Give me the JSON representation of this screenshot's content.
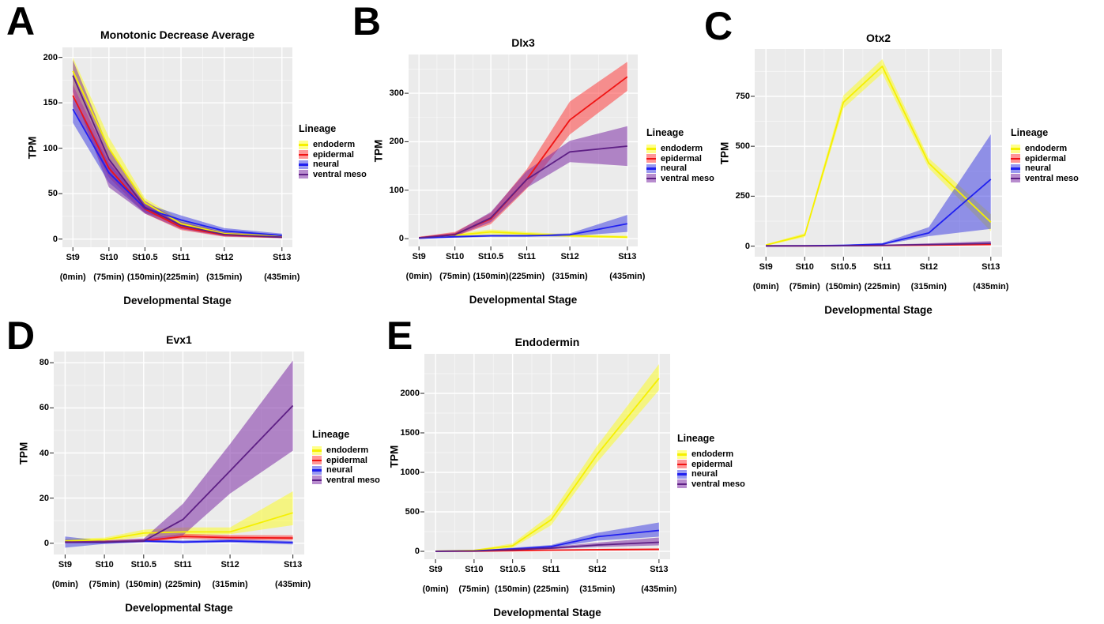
{
  "figure": {
    "background": "#ffffff",
    "panel_background": "#EBEBEB",
    "grid_major_color": "#FFFFFF",
    "grid_minor_color": "#FFFFFF",
    "x_axis_title": "Developmental Stage",
    "y_axis_title": "TPM",
    "legend_title": "Lineage",
    "stages": [
      "St9",
      "St10",
      "St10.5",
      "St11",
      "St12",
      "St13"
    ],
    "stage_minute_labels": [
      "(0min)",
      "(75min)",
      "(150min)",
      "(225min)",
      "(315min)",
      "(435min)"
    ],
    "stage_minutes": [
      0,
      75,
      150,
      225,
      315,
      435
    ]
  },
  "lineages": [
    {
      "name": "endoderm",
      "line_color": "#F5F000",
      "fill_color": "rgba(255,255,0,0.45)"
    },
    {
      "name": "epidermal",
      "line_color": "#F01414",
      "fill_color": "rgba(255,48,48,0.5)"
    },
    {
      "name": "neural",
      "line_color": "#2020F0",
      "fill_color": "rgba(52,52,226,0.5)"
    },
    {
      "name": "ventral meso",
      "line_color": "#5E1F85",
      "fill_color": "rgba(125,45,165,0.55)"
    }
  ],
  "chart_data": [
    {
      "type": "line",
      "letter": "A",
      "title": "Monotonic Decrease Average",
      "xlabel": "Developmental Stage",
      "ylabel": "TPM",
      "x_minutes": [
        0,
        75,
        150,
        225,
        315,
        435
      ],
      "ylim": [
        -9,
        211
      ],
      "yticks": [
        0,
        50,
        100,
        150,
        200
      ],
      "series": [
        {
          "name": "endoderm",
          "mean": [
            185,
            100,
            40,
            17,
            6,
            3
          ],
          "lower": [
            170,
            90,
            36,
            14,
            4,
            1.5
          ],
          "upper": [
            200,
            112,
            45,
            21,
            8,
            4.5
          ]
        },
        {
          "name": "epidermal",
          "mean": [
            158,
            78,
            33,
            13,
            4.5,
            2
          ],
          "lower": [
            146,
            68,
            28,
            10,
            2.5,
            1
          ],
          "upper": [
            170,
            88,
            38,
            17,
            6.5,
            3.5
          ]
        },
        {
          "name": "neural",
          "mean": [
            143,
            73,
            34,
            21,
            9,
            4
          ],
          "lower": [
            128,
            62,
            29,
            17,
            6,
            2
          ],
          "upper": [
            158,
            84,
            39,
            26,
            12,
            6
          ]
        },
        {
          "name": "ventral meso",
          "mean": [
            180,
            88,
            35,
            15,
            5,
            2
          ],
          "lower": [
            162,
            57,
            28,
            11,
            3,
            1
          ],
          "upper": [
            197,
            100,
            42,
            19,
            7.5,
            3.5
          ]
        }
      ]
    },
    {
      "type": "line",
      "letter": "B",
      "title": "Dlx3",
      "xlabel": "Developmental Stage",
      "ylabel": "TPM",
      "x_minutes": [
        0,
        75,
        150,
        225,
        315,
        435
      ],
      "ylim": [
        -16,
        380
      ],
      "yticks": [
        0,
        100,
        200,
        300
      ],
      "series": [
        {
          "name": "endoderm",
          "mean": [
            2,
            7,
            14,
            10,
            6,
            3
          ],
          "lower": [
            1,
            4,
            9,
            6,
            3,
            1
          ],
          "upper": [
            3,
            10,
            19,
            14,
            9,
            6
          ]
        },
        {
          "name": "epidermal",
          "mean": [
            2,
            9,
            41,
            122,
            245,
            334
          ],
          "lower": [
            1,
            5,
            30,
            103,
            215,
            305
          ],
          "upper": [
            4,
            14,
            53,
            143,
            283,
            365
          ]
        },
        {
          "name": "neural",
          "mean": [
            1,
            4,
            6,
            6,
            8,
            31
          ],
          "lower": [
            0,
            2,
            4,
            4,
            5,
            14
          ],
          "upper": [
            2,
            6,
            8,
            8,
            11,
            49
          ]
        },
        {
          "name": "ventral meso",
          "mean": [
            2,
            8,
            43,
            122,
            179,
            191
          ],
          "lower": [
            1,
            5,
            34,
            105,
            158,
            150
          ],
          "upper": [
            3,
            12,
            55,
            140,
            202,
            232
          ]
        }
      ]
    },
    {
      "type": "line",
      "letter": "C",
      "title": "Otx2",
      "xlabel": "Developmental Stage",
      "ylabel": "TPM",
      "x_minutes": [
        0,
        75,
        150,
        225,
        315,
        435
      ],
      "ylim": [
        -53,
        987
      ],
      "yticks": [
        0,
        250,
        500,
        750
      ],
      "series": [
        {
          "name": "endoderm",
          "mean": [
            5,
            55,
            720,
            900,
            415,
            120
          ],
          "lower": [
            2,
            45,
            690,
            865,
            390,
            75
          ],
          "upper": [
            10,
            65,
            755,
            936,
            440,
            160
          ]
        },
        {
          "name": "epidermal",
          "mean": [
            1,
            1,
            2,
            3,
            5,
            8
          ],
          "lower": [
            0,
            0,
            1,
            2,
            3,
            5
          ],
          "upper": [
            2,
            2,
            4,
            5,
            8,
            12
          ]
        },
        {
          "name": "neural",
          "mean": [
            1,
            2,
            4,
            10,
            66,
            335
          ],
          "lower": [
            0,
            1,
            2,
            6,
            50,
            86
          ],
          "upper": [
            2,
            4,
            7,
            15,
            95,
            560
          ]
        },
        {
          "name": "ventral meso",
          "mean": [
            1,
            1,
            2,
            4,
            8,
            14
          ],
          "lower": [
            0,
            0,
            1,
            2,
            4,
            6
          ],
          "upper": [
            2,
            3,
            4,
            7,
            14,
            25
          ]
        }
      ]
    },
    {
      "type": "line",
      "letter": "D",
      "title": "Evx1",
      "xlabel": "Developmental Stage",
      "ylabel": "TPM",
      "x_minutes": [
        0,
        75,
        150,
        225,
        315,
        435
      ],
      "ylim": [
        -5,
        85
      ],
      "yticks": [
        0,
        20,
        40,
        60,
        80
      ],
      "series": [
        {
          "name": "endoderm",
          "mean": [
            1,
            1.5,
            4.5,
            5,
            5,
            13.5
          ],
          "lower": [
            0.2,
            0.5,
            3,
            3.5,
            4,
            8
          ],
          "upper": [
            2,
            2.5,
            6,
            7,
            7,
            23
          ]
        },
        {
          "name": "epidermal",
          "mean": [
            0.5,
            0.5,
            1,
            3,
            2.5,
            2.3
          ],
          "lower": [
            0,
            0,
            0.5,
            2,
            1.5,
            1.4
          ],
          "upper": [
            1,
            1.2,
            2,
            4.2,
            3.6,
            3.5
          ]
        },
        {
          "name": "neural",
          "mean": [
            0.5,
            0.3,
            1,
            0.5,
            1,
            0.3
          ],
          "lower": [
            -2,
            -0.3,
            0.4,
            0,
            0.3,
            -0.5
          ],
          "upper": [
            3,
            1,
            1.6,
            1.2,
            1.8,
            1
          ]
        },
        {
          "name": "ventral meso",
          "mean": [
            0.5,
            0.5,
            1,
            10.5,
            32,
            61
          ],
          "lower": [
            0,
            0.1,
            0.5,
            3.5,
            22,
            41
          ],
          "upper": [
            1.5,
            1.2,
            2,
            17.5,
            44,
            81
          ]
        }
      ]
    },
    {
      "type": "line",
      "letter": "E",
      "title": "Endodermin",
      "xlabel": "Developmental Stage",
      "ylabel": "TPM",
      "x_minutes": [
        0,
        75,
        150,
        225,
        315,
        435
      ],
      "ylim": [
        -100,
        2500
      ],
      "yticks": [
        0,
        500,
        1000,
        1500,
        2000
      ],
      "series": [
        {
          "name": "endoderm",
          "mean": [
            2,
            12,
            70,
            400,
            1230,
            2190
          ],
          "lower": [
            0,
            8,
            45,
            330,
            1130,
            2040
          ],
          "upper": [
            5,
            18,
            100,
            470,
            1340,
            2370
          ]
        },
        {
          "name": "epidermal",
          "mean": [
            1,
            2,
            8,
            15,
            20,
            25
          ],
          "lower": [
            0,
            1,
            4,
            8,
            10,
            12
          ],
          "upper": [
            2,
            4,
            12,
            22,
            30,
            38
          ]
        },
        {
          "name": "neural",
          "mean": [
            1,
            5,
            30,
            60,
            185,
            265
          ],
          "lower": [
            0,
            2,
            20,
            45,
            135,
            185
          ],
          "upper": [
            3,
            9,
            45,
            80,
            235,
            365
          ]
        },
        {
          "name": "ventral meso",
          "mean": [
            1,
            4,
            22,
            40,
            80,
            115
          ],
          "lower": [
            0,
            2,
            14,
            28,
            55,
            75
          ],
          "upper": [
            2,
            7,
            32,
            55,
            110,
            175
          ]
        }
      ]
    }
  ]
}
